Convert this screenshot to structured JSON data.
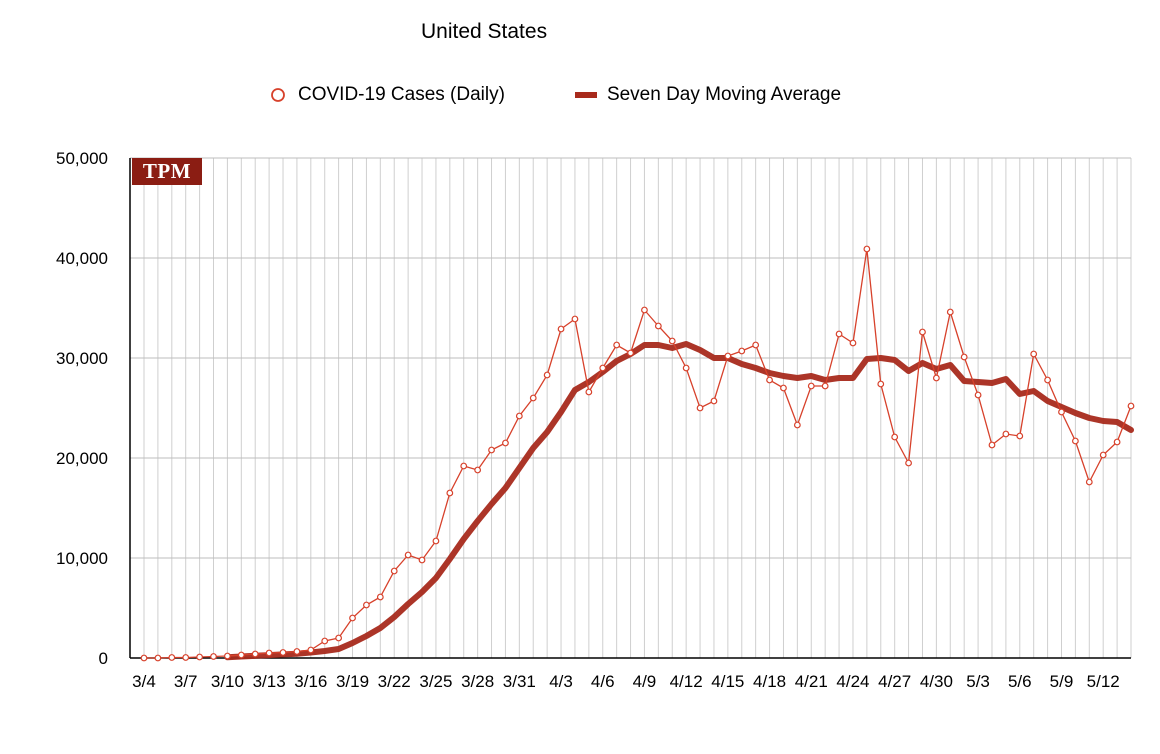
{
  "chart_data": {
    "type": "line",
    "title": "United States",
    "xlabel": "",
    "ylabel": "",
    "ylim": [
      0,
      50000
    ],
    "yticks": [
      "50,000",
      "40,000",
      "30,000",
      "20,000",
      "10,000",
      "0"
    ],
    "ytick_values": [
      50000,
      40000,
      30000,
      20000,
      10000,
      0
    ],
    "xtick_labels": [
      "3/4",
      "3/7",
      "3/10",
      "3/13",
      "3/16",
      "3/19",
      "3/22",
      "3/25",
      "3/28",
      "3/31",
      "4/3",
      "4/6",
      "4/9",
      "4/12",
      "4/15",
      "4/18",
      "4/21",
      "4/24",
      "4/27",
      "4/30",
      "5/3",
      "5/6",
      "5/9",
      "5/12"
    ],
    "grid": true,
    "legend_position": "top",
    "x": [
      "3/4",
      "3/5",
      "3/6",
      "3/7",
      "3/8",
      "3/9",
      "3/10",
      "3/11",
      "3/12",
      "3/13",
      "3/14",
      "3/15",
      "3/16",
      "3/17",
      "3/18",
      "3/19",
      "3/20",
      "3/21",
      "3/22",
      "3/23",
      "3/24",
      "3/25",
      "3/26",
      "3/27",
      "3/28",
      "3/29",
      "3/30",
      "3/31",
      "4/1",
      "4/2",
      "4/3",
      "4/4",
      "4/5",
      "4/6",
      "4/7",
      "4/8",
      "4/9",
      "4/10",
      "4/11",
      "4/12",
      "4/13",
      "4/14",
      "4/15",
      "4/16",
      "4/17",
      "4/18",
      "4/19",
      "4/20",
      "4/21",
      "4/22",
      "4/23",
      "4/24",
      "4/25",
      "4/26",
      "4/27",
      "4/28",
      "4/29",
      "4/30",
      "5/1",
      "5/2",
      "5/3",
      "5/4",
      "5/5",
      "5/6",
      "5/7",
      "5/8",
      "5/9",
      "5/10",
      "5/11",
      "5/12",
      "5/13",
      "5/14"
    ],
    "series": [
      {
        "name": "COVID-19 Cases (Daily)",
        "color": "#d7412b",
        "style": "line-with-open-circles",
        "values": [
          0,
          0,
          50,
          50,
          100,
          150,
          200,
          300,
          400,
          500,
          550,
          650,
          800,
          1700,
          2000,
          4000,
          5300,
          6100,
          8700,
          10300,
          9800,
          11700,
          16500,
          19200,
          18800,
          20800,
          21500,
          24200,
          26000,
          28300,
          32900,
          33900,
          26600,
          29000,
          31300,
          30500,
          34800,
          33200,
          31700,
          29000,
          25000,
          25700,
          30200,
          30700,
          31300,
          27800,
          27000,
          23300,
          27200,
          27200,
          32400,
          31500,
          40900,
          27400,
          22100,
          19500,
          32600,
          28000,
          34600,
          30100,
          26300,
          21300,
          22400,
          22200,
          30400,
          27800,
          24600,
          21700,
          17600,
          20300,
          21600,
          25200
        ]
      },
      {
        "name": "Seven Day Moving Average",
        "color": "#a82a1c",
        "style": "thick-line",
        "values": [
          null,
          null,
          null,
          null,
          null,
          null,
          70,
          150,
          220,
          290,
          360,
          430,
          550,
          700,
          900,
          1500,
          2200,
          3000,
          4100,
          5400,
          6600,
          8000,
          9900,
          11900,
          13700,
          15400,
          17000,
          19000,
          21000,
          22600,
          24600,
          26800,
          27600,
          28600,
          29700,
          30400,
          31300,
          31300,
          31000,
          31400,
          30800,
          30000,
          30000,
          29400,
          29000,
          28500,
          28200,
          28000,
          28200,
          27800,
          28000,
          28000,
          29900,
          30000,
          29800,
          28700,
          29500,
          28900,
          29300,
          27700,
          27600,
          27500,
          27900,
          26400,
          26700,
          25700,
          25100,
          24500,
          24000,
          23700,
          23600,
          22800
        ]
      }
    ]
  },
  "logo": {
    "text": "TPM",
    "color": "#8b1d13"
  }
}
